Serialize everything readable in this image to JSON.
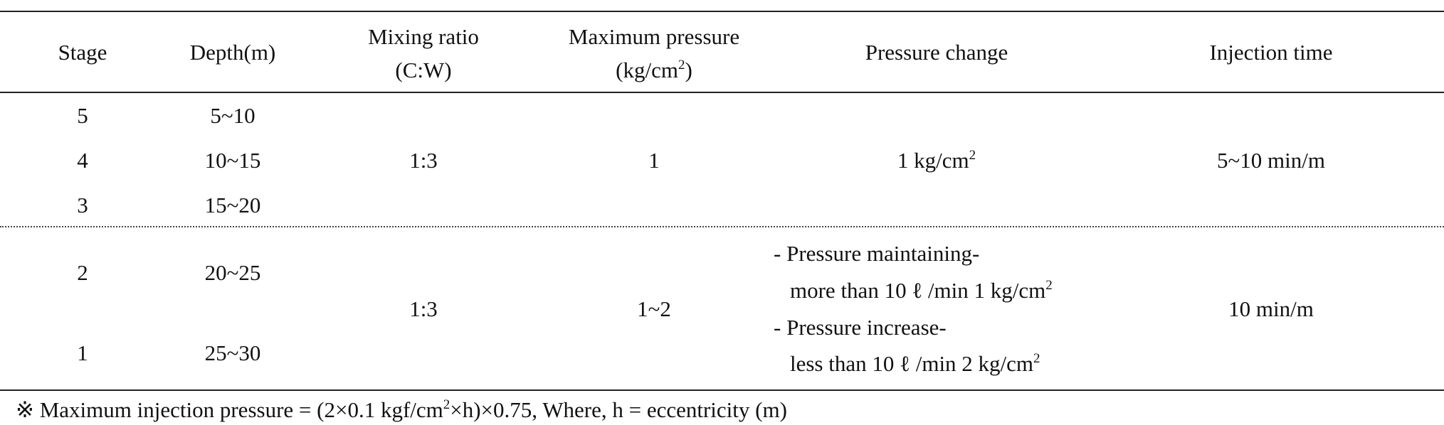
{
  "table": {
    "header": {
      "stage": "Stage",
      "depth": "Depth(m)",
      "mixing_ratio": [
        "Mixing ratio",
        "(C:W)"
      ],
      "max_pressure": [
        "Maximum pressure",
        "(kg/cm",
        "2",
        ")"
      ],
      "pressure_change": "Pressure change",
      "injection_time": "Injection time"
    },
    "group1": {
      "rows": [
        {
          "stage": "5",
          "depth": "5~10"
        },
        {
          "stage": "4",
          "depth": "10~15"
        },
        {
          "stage": "3",
          "depth": "15~20"
        }
      ],
      "mixing_ratio": "1:3",
      "max_pressure": "1",
      "pressure_change": [
        "1 kg/cm",
        "2"
      ],
      "injection_time": "5~10 min/m"
    },
    "group2": {
      "rows": [
        {
          "stage": "2",
          "depth": "20~25"
        },
        {
          "stage": "1",
          "depth": "25~30"
        }
      ],
      "mixing_ratio": "1:3",
      "max_pressure": "1~2",
      "pressure_change": [
        "- Pressure maintaining-",
        "more than 10 ℓ /min 1 kg/cm",
        "2",
        "- Pressure increase-",
        "less than 10 ℓ /min 2 kg/cm",
        "2"
      ],
      "injection_time": "10 min/m"
    }
  },
  "footnote": [
    "※ Maximum injection pressure = (2×0.1 kgf/cm",
    "2",
    "×h)×0.75, Where, h = eccentricity (m)"
  ]
}
